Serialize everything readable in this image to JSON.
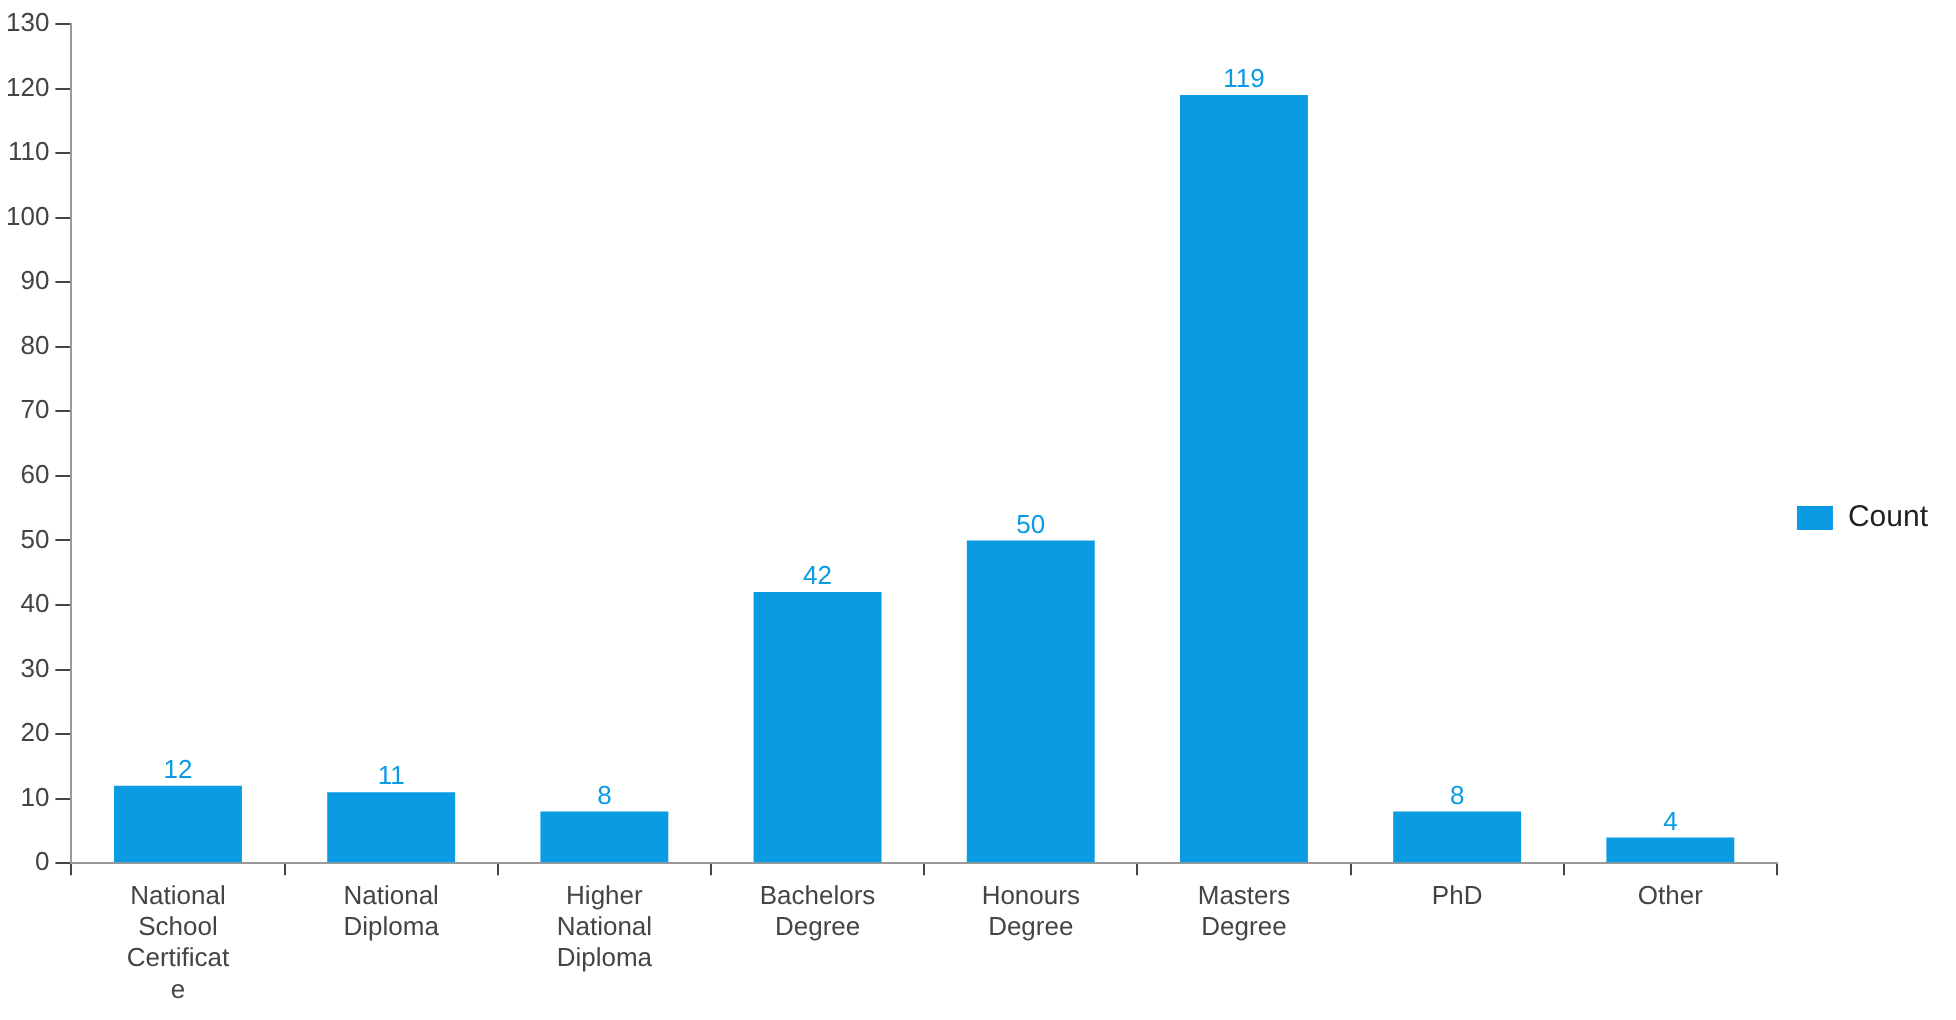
{
  "chart_data": {
    "type": "bar",
    "categories": [
      "National School Certificate",
      "National Diploma",
      "Higher National Diploma",
      "Bachelors Degree",
      "Honours Degree",
      "Masters Degree",
      "PhD",
      "Other"
    ],
    "series": [
      {
        "name": "Count",
        "color": "#0a9be3",
        "values": [
          12,
          11,
          8,
          42,
          50,
          119,
          8,
          4
        ]
      }
    ],
    "ylim": [
      0,
      130
    ],
    "yticks": [
      0,
      10,
      20,
      30,
      40,
      50,
      60,
      70,
      80,
      90,
      100,
      110,
      120,
      130
    ],
    "grid": false,
    "legend": "right",
    "data_labels": true
  }
}
